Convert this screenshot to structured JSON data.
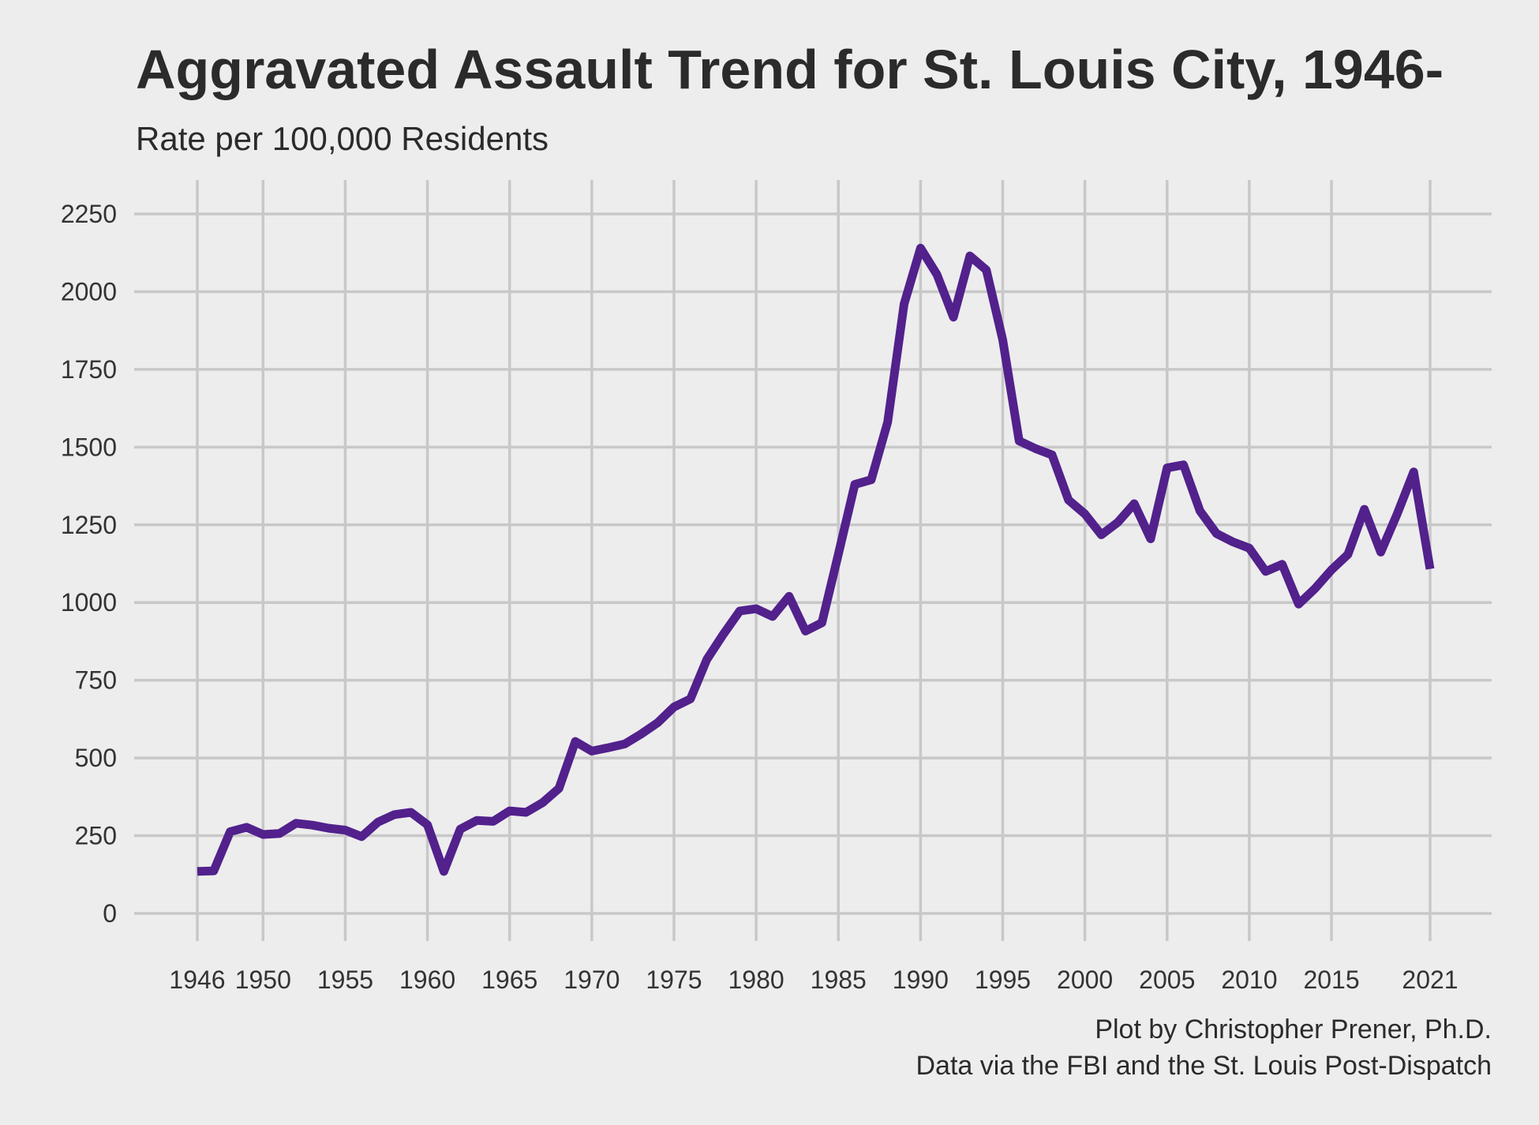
{
  "chart_data": {
    "type": "line",
    "title": "Aggravated Assault Trend for St. Louis City, 1946-",
    "subtitle": "Rate per 100,000 Residents",
    "xlabel": "",
    "ylabel": "",
    "x_ticks": [
      1946,
      1950,
      1955,
      1960,
      1965,
      1970,
      1975,
      1980,
      1985,
      1990,
      1995,
      2000,
      2005,
      2010,
      2015,
      2021
    ],
    "y_ticks": [
      0,
      250,
      500,
      750,
      1000,
      1250,
      1500,
      1750,
      2000,
      2250
    ],
    "xlim": [
      1946,
      2021
    ],
    "ylim": [
      0,
      2250
    ],
    "grid": true,
    "legend": "none",
    "colors": {
      "line": "#52218c",
      "background": "#ededed",
      "grid": "#c8c8c8",
      "text": "#2b2b2b"
    },
    "series": [
      {
        "x": [
          1946,
          1947,
          1948,
          1949,
          1950,
          1951,
          1952,
          1953,
          1954,
          1955,
          1956,
          1957,
          1958,
          1959,
          1960,
          1961,
          1962,
          1963,
          1964,
          1965,
          1966,
          1967,
          1968,
          1969,
          1970,
          1971,
          1972,
          1973,
          1974,
          1975,
          1976,
          1977,
          1978,
          1979,
          1980,
          1981,
          1982,
          1983,
          1984,
          1985,
          1986,
          1987,
          1988,
          1989,
          1990,
          1991,
          1992,
          1993,
          1994,
          1995,
          1996,
          1997,
          1998,
          1999,
          2000,
          2001,
          2002,
          2003,
          2004,
          2005,
          2006,
          2007,
          2008,
          2009,
          2010,
          2011,
          2012,
          2013,
          2014,
          2015,
          2016,
          2017,
          2018,
          2019,
          2020,
          2021
        ],
        "values": [
          135,
          137,
          263,
          277,
          254,
          257,
          290,
          284,
          274,
          268,
          247,
          294,
          318,
          325,
          285,
          135,
          271,
          299,
          296,
          330,
          325,
          356,
          402,
          553,
          522,
          533,
          545,
          577,
          613,
          664,
          690,
          817,
          898,
          973,
          980,
          955,
          1020,
          908,
          935,
          1155,
          1380,
          1395,
          1580,
          1960,
          2140,
          2055,
          1918,
          2115,
          2070,
          1845,
          1520,
          1495,
          1475,
          1330,
          1285,
          1218,
          1258,
          1318,
          1205,
          1433,
          1443,
          1295,
          1222,
          1195,
          1175,
          1100,
          1123,
          995,
          1045,
          1105,
          1155,
          1300,
          1162,
          1285,
          1420,
          1108
        ]
      }
    ],
    "caption_lines": [
      "Plot by Christopher Prener, Ph.D.",
      "Data via the FBI and the St. Louis Post-Dispatch"
    ]
  }
}
